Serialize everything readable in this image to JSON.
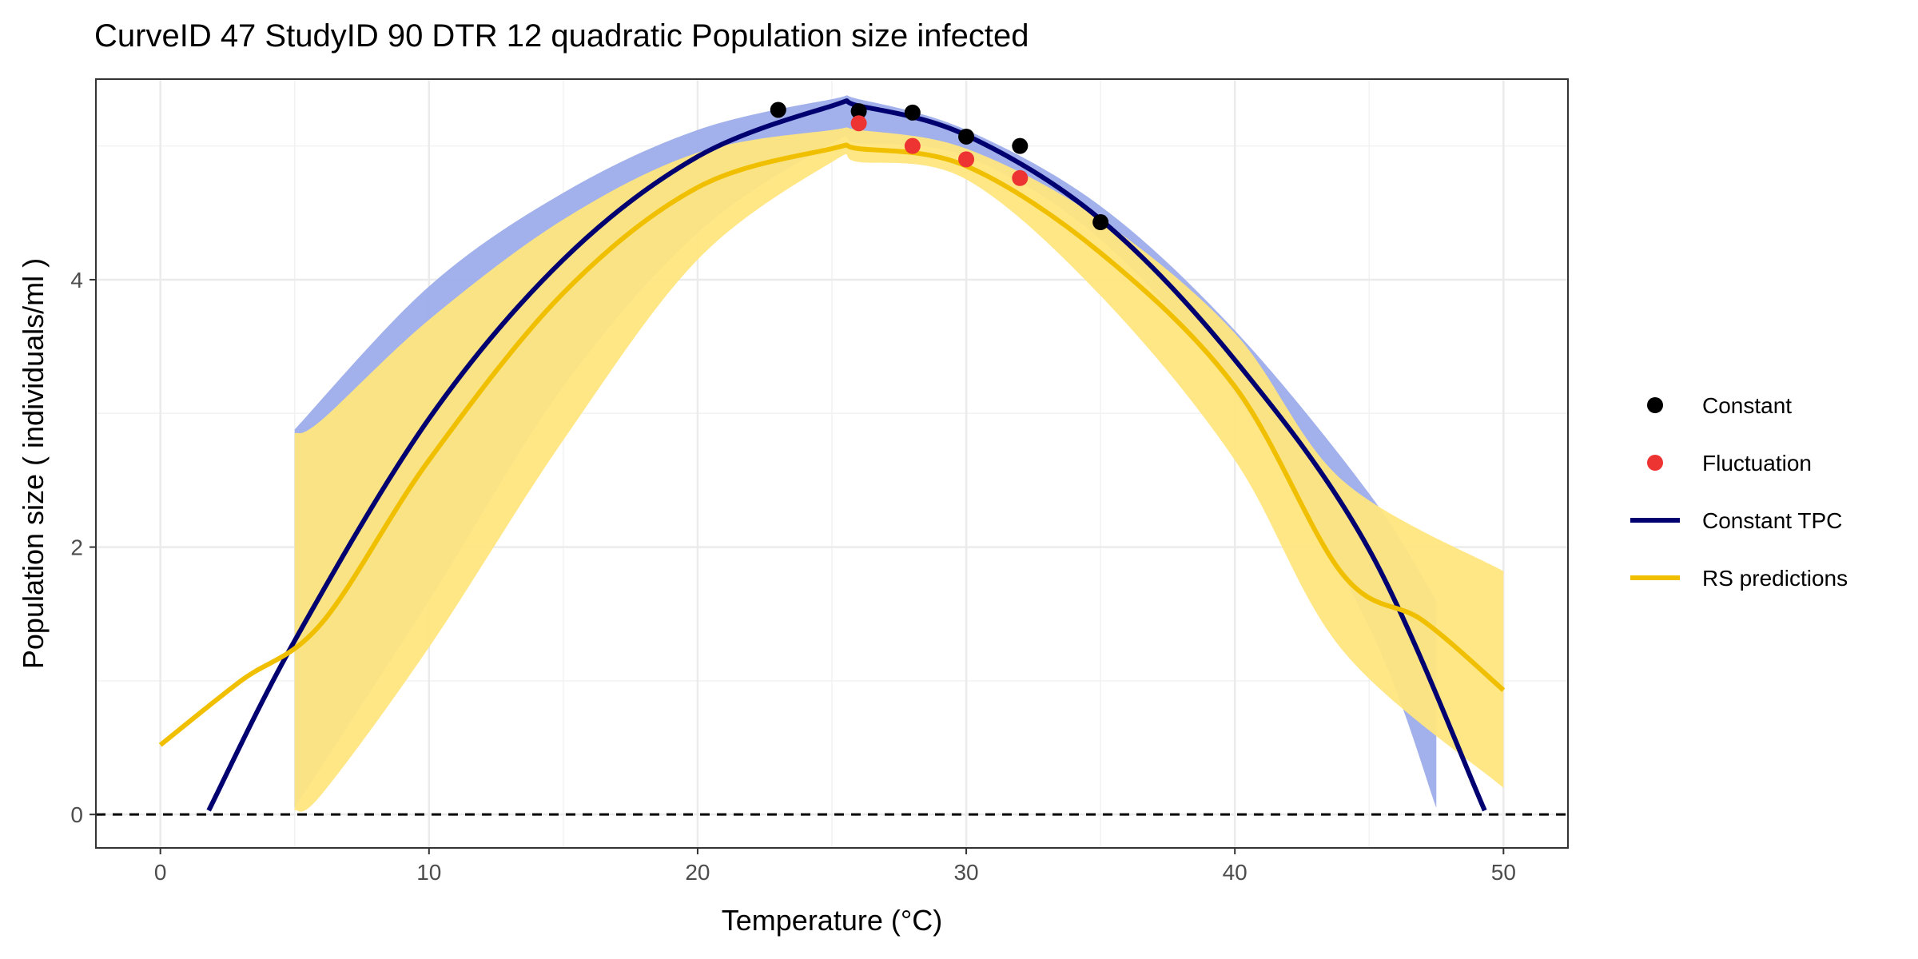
{
  "chart_data": {
    "type": "line",
    "title": "CurveID 47 StudyID 90 DTR 12 quadratic Population size infected",
    "xlabel": "Temperature (°C)",
    "ylabel": "Population size ( individuals/ml )",
    "xlim": [
      -2.4,
      52.4
    ],
    "ylim": [
      -0.25,
      5.5
    ],
    "x_ticks": [
      0,
      10,
      20,
      30,
      40,
      50
    ],
    "y_ticks": [
      0,
      2,
      4
    ],
    "grid": true,
    "legend_position": "right",
    "reference_line": {
      "y": 0,
      "style": "dashed"
    },
    "series": [
      {
        "name": "Constant",
        "kind": "points",
        "color": "#000000",
        "points": [
          [
            23,
            5.27
          ],
          [
            26,
            5.26
          ],
          [
            28,
            5.25
          ],
          [
            30,
            5.07
          ],
          [
            32,
            5.0
          ],
          [
            35,
            4.43
          ]
        ]
      },
      {
        "name": "Fluctuation",
        "kind": "points",
        "color": "#ee3333",
        "points": [
          [
            26,
            5.17
          ],
          [
            28,
            5.0
          ],
          [
            30,
            4.9
          ],
          [
            32,
            4.76
          ]
        ]
      },
      {
        "name": "Constant TPC",
        "kind": "line",
        "color": "#000070",
        "points": [
          [
            1.8,
            0.03
          ],
          [
            5,
            1.3
          ],
          [
            10,
            2.96
          ],
          [
            15,
            4.15
          ],
          [
            20,
            4.92
          ],
          [
            25,
            5.3
          ],
          [
            26,
            5.3
          ],
          [
            30,
            5.08
          ],
          [
            35,
            4.45
          ],
          [
            40,
            3.4
          ],
          [
            45,
            1.98
          ],
          [
            49.3,
            0.03
          ]
        ]
      },
      {
        "name": "Constant TPC band",
        "kind": "band",
        "color": "#9dadea",
        "upper": [
          [
            5,
            2.88
          ],
          [
            10,
            3.95
          ],
          [
            15,
            4.65
          ],
          [
            20,
            5.12
          ],
          [
            25,
            5.35
          ],
          [
            26,
            5.35
          ],
          [
            30,
            5.12
          ],
          [
            35,
            4.55
          ],
          [
            40,
            3.62
          ],
          [
            45,
            2.4
          ],
          [
            47.5,
            1.6
          ]
        ],
        "lower": [
          [
            5,
            0.05
          ],
          [
            10,
            1.6
          ],
          [
            15,
            3.2
          ],
          [
            20,
            4.35
          ],
          [
            25,
            5.02
          ],
          [
            26,
            5.02
          ],
          [
            30,
            4.92
          ],
          [
            35,
            4.3
          ],
          [
            40,
            3.15
          ],
          [
            45,
            1.4
          ],
          [
            47.5,
            0.05
          ]
        ]
      },
      {
        "name": "RS predictions",
        "kind": "line",
        "color": "#f0c000",
        "points": [
          [
            0,
            0.52
          ],
          [
            3,
            1.0
          ],
          [
            6,
            1.43
          ],
          [
            10,
            2.65
          ],
          [
            15,
            3.9
          ],
          [
            20,
            4.69
          ],
          [
            25,
            4.98
          ],
          [
            26,
            4.98
          ],
          [
            30,
            4.85
          ],
          [
            35,
            4.2
          ],
          [
            40,
            3.2
          ],
          [
            44,
            1.8
          ],
          [
            47,
            1.45
          ],
          [
            50,
            0.93
          ]
        ]
      },
      {
        "name": "RS predictions band",
        "kind": "band",
        "color": "#ffe680",
        "upper": [
          [
            5,
            2.85
          ],
          [
            6,
            2.95
          ],
          [
            10,
            3.7
          ],
          [
            15,
            4.45
          ],
          [
            20,
            4.95
          ],
          [
            25,
            5.12
          ],
          [
            26,
            5.12
          ],
          [
            30,
            4.98
          ],
          [
            35,
            4.45
          ],
          [
            40,
            3.6
          ],
          [
            44,
            2.5
          ],
          [
            50,
            1.82
          ]
        ],
        "lower": [
          [
            5,
            0.03
          ],
          [
            6,
            0.15
          ],
          [
            10,
            1.25
          ],
          [
            15,
            2.8
          ],
          [
            20,
            4.15
          ],
          [
            25,
            4.88
          ],
          [
            26,
            4.88
          ],
          [
            30,
            4.75
          ],
          [
            35,
            3.88
          ],
          [
            40,
            2.65
          ],
          [
            44,
            1.23
          ],
          [
            50,
            0.2
          ]
        ]
      }
    ],
    "legend": [
      {
        "label": "Constant",
        "marker": "point",
        "color": "#000000"
      },
      {
        "label": "Fluctuation",
        "marker": "point",
        "color": "#ee3333"
      },
      {
        "label": "Constant TPC",
        "marker": "line",
        "color": "#000070"
      },
      {
        "label": "RS predictions",
        "marker": "line",
        "color": "#f0c000"
      }
    ]
  }
}
